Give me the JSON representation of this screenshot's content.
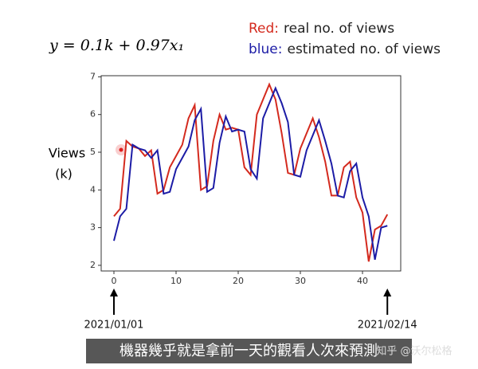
{
  "chart_data": {
    "type": "line",
    "formula": "y = 0.1k + 0.97x₁",
    "y_label": [
      "Views",
      "(k)"
    ],
    "x": [
      0,
      1,
      2,
      3,
      4,
      5,
      6,
      7,
      8,
      9,
      10,
      11,
      12,
      13,
      14,
      15,
      16,
      17,
      18,
      19,
      20,
      21,
      22,
      23,
      24,
      25,
      26,
      27,
      28,
      29,
      30,
      31,
      32,
      33,
      34,
      35,
      36,
      37,
      38,
      39,
      40,
      41,
      42,
      43,
      44
    ],
    "series": [
      {
        "key": "Red:",
        "name": "real no. of views",
        "color": "#d42a1e",
        "values": [
          3.3,
          3.5,
          5.3,
          5.15,
          5.1,
          4.9,
          5.05,
          3.9,
          4.0,
          4.6,
          4.9,
          5.2,
          5.9,
          6.25,
          4.0,
          4.1,
          5.3,
          6.0,
          5.6,
          5.65,
          5.6,
          4.6,
          4.4,
          6.0,
          6.4,
          6.8,
          6.4,
          5.5,
          4.45,
          4.4,
          5.1,
          5.5,
          5.9,
          5.4,
          4.75,
          3.85,
          3.85,
          4.6,
          4.75,
          3.8,
          3.4,
          2.1,
          2.95,
          3.05,
          3.35
        ]
      },
      {
        "key": "blue:",
        "name": "estimated no. of views",
        "color": "#1c1ca6",
        "values": [
          2.65,
          3.3,
          3.5,
          5.2,
          5.1,
          5.05,
          4.85,
          5.05,
          3.9,
          3.95,
          4.55,
          4.85,
          5.15,
          5.85,
          6.15,
          3.95,
          4.05,
          5.25,
          5.95,
          5.55,
          5.6,
          5.55,
          4.55,
          4.3,
          5.9,
          6.3,
          6.7,
          6.3,
          5.8,
          4.4,
          4.35,
          5.05,
          5.45,
          5.85,
          5.3,
          4.7,
          3.85,
          3.8,
          4.5,
          4.7,
          3.8,
          3.3,
          2.15,
          3.0,
          3.05
        ]
      }
    ],
    "xlim": [
      -2.05,
      46.15
    ],
    "ylim": [
      1.85,
      7.03
    ],
    "xticks": [
      0,
      10,
      20,
      30,
      40
    ],
    "yticks": [
      2,
      3,
      4,
      5,
      6,
      7
    ],
    "annotations": [
      {
        "text": "2021/01/01",
        "x": 0
      },
      {
        "text": "2021/02/14",
        "x": 44
      }
    ],
    "caption": "機器幾乎就是拿前一天的觀看人次來預測",
    "watermark": "知乎 @沃尔松格"
  }
}
